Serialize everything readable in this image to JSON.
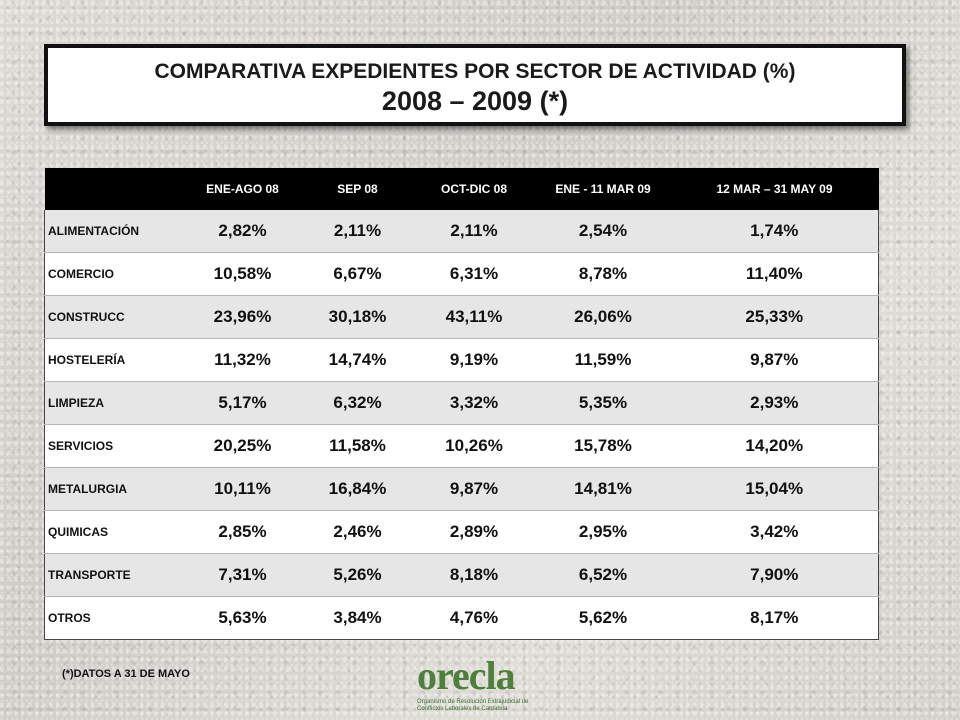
{
  "title": {
    "line1": "COMPARATIVA EXPEDIENTES POR SECTOR DE ACTIVIDAD (%)",
    "line2": "2008 – 2009 (*)"
  },
  "table": {
    "headers": [
      "",
      "ENE-AGO 08",
      "SEP 08",
      "OCT-DIC 08",
      "ENE - 11 MAR 09",
      "12 MAR – 31 MAY 09"
    ],
    "rows": [
      {
        "sector": "ALIMENTACIÓN",
        "values": [
          "2,82%",
          "2,11%",
          "2,11%",
          "2,54%",
          "1,74%"
        ]
      },
      {
        "sector": "COMERCIO",
        "values": [
          "10,58%",
          "6,67%",
          "6,31%",
          "8,78%",
          "11,40%"
        ]
      },
      {
        "sector": "CONSTRUCC",
        "values": [
          "23,96%",
          "30,18%",
          "43,11%",
          "26,06%",
          "25,33%"
        ]
      },
      {
        "sector": "HOSTELERÍA",
        "values": [
          "11,32%",
          "14,74%",
          "9,19%",
          "11,59%",
          "9,87%"
        ]
      },
      {
        "sector": "LIMPIEZA",
        "values": [
          "5,17%",
          "6,32%",
          "3,32%",
          "5,35%",
          "2,93%"
        ]
      },
      {
        "sector": "SERVICIOS",
        "values": [
          "20,25%",
          "11,58%",
          "10,26%",
          "15,78%",
          "14,20%"
        ]
      },
      {
        "sector": "METALURGIA",
        "values": [
          "10,11%",
          "16,84%",
          "9,87%",
          "14,81%",
          "15,04%"
        ]
      },
      {
        "sector": "QUIMICAS",
        "values": [
          "2,85%",
          "2,46%",
          "2,89%",
          "2,95%",
          "3,42%"
        ]
      },
      {
        "sector": "TRANSPORTE",
        "values": [
          "7,31%",
          "5,26%",
          "8,18%",
          "6,52%",
          "7,90%"
        ]
      },
      {
        "sector": "OTROS",
        "values": [
          "5,63%",
          "3,84%",
          "4,76%",
          "5,62%",
          "8,17%"
        ]
      }
    ]
  },
  "footnote": "(*)DATOS A 31 DE MAYO",
  "logo": {
    "name": "orecla",
    "tagline": "Organismo de Resolución Extrajudicial de Conflictos Laborales de Cantabria"
  },
  "colors": {
    "header_bg": "#000000",
    "row_alt": "#e6e6e6",
    "logo_green": "#4f7f3c"
  }
}
